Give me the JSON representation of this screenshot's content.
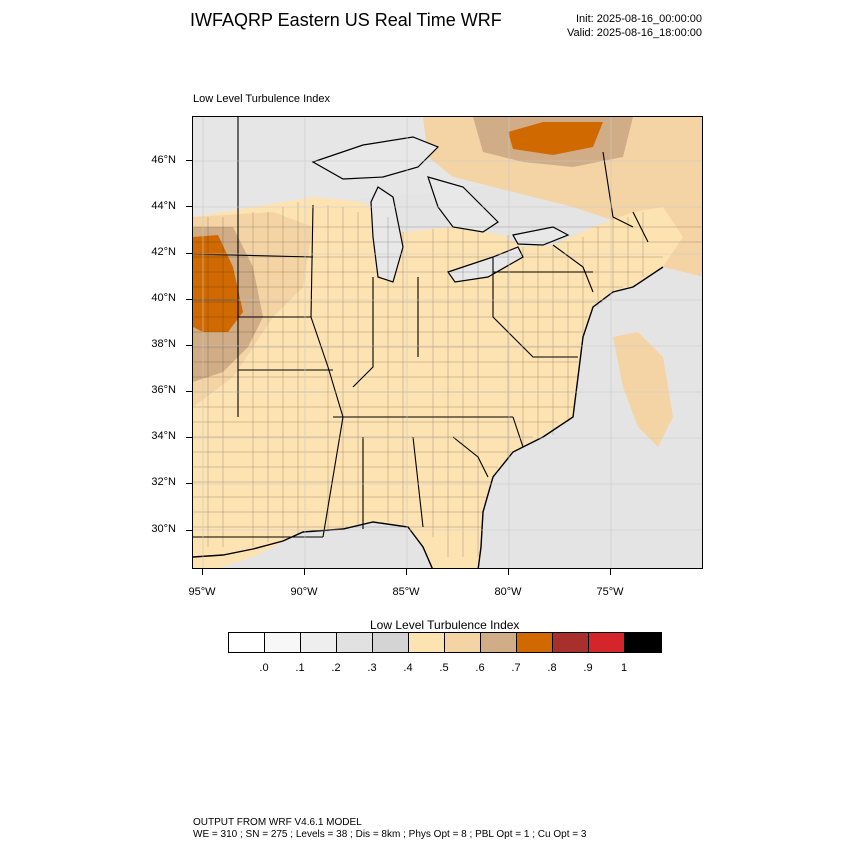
{
  "header": {
    "title": "IWFAQRP Eastern US Real Time WRF",
    "init": "Init: 2025-08-16_00:00:00",
    "valid": "Valid: 2025-08-16_18:00:00"
  },
  "plot": {
    "subtitle": "Low Level Turbulence Index",
    "lat_labels": [
      "46°N",
      "44°N",
      "42°N",
      "40°N",
      "38°N",
      "36°N",
      "34°N",
      "32°N",
      "30°N"
    ],
    "lon_labels": [
      "95°W",
      "90°W",
      "85°W",
      "80°W",
      "75°W"
    ]
  },
  "legend": {
    "title": "Low Level Turbulence Index",
    "colors": [
      "#ffffff",
      "#f7f7f7",
      "#eeeeee",
      "#e1e1e1",
      "#d4d4d4",
      "#fde2b2",
      "#f4d4a4",
      "#d0ad86",
      "#d06a00",
      "#a8302c",
      "#d4262a",
      "#000000"
    ],
    "labels": [
      ".0",
      ".1",
      ".2",
      ".3",
      ".4",
      ".5",
      ".6",
      ".7",
      ".8",
      ".9",
      "1"
    ]
  },
  "map_colors": {
    "ocean": "#e4e4e4",
    "land": "#fde2b2",
    "land_mid": "#f4d4a4",
    "land_high": "#d0ad86",
    "land_max": "#d06a00",
    "lakes": "#e8e8e8",
    "borders": "#000000"
  },
  "footer": {
    "line1": "OUTPUT FROM WRF V4.6.1 MODEL",
    "line2": "WE = 310 ; SN = 275 ; Levels = 38 ; Dis = 8km ; Phys Opt = 8 ; PBL Opt = 1 ; Cu Opt = 3"
  }
}
